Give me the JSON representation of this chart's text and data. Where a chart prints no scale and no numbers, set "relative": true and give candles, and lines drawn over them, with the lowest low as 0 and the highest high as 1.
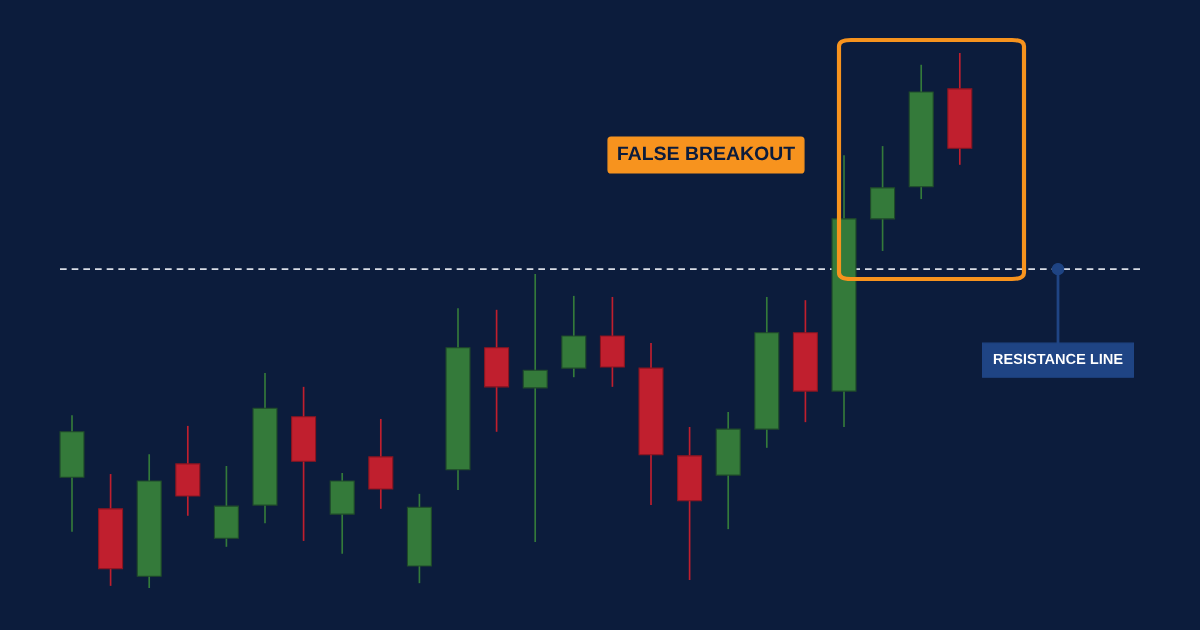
{
  "chart_data": {
    "type": "candlestick",
    "relative": true,
    "categories": [
      null,
      null,
      null,
      null,
      null,
      null,
      null,
      null,
      null,
      null,
      null,
      null,
      null,
      null,
      null,
      null,
      null,
      null,
      null,
      null,
      null,
      null,
      null,
      null
    ],
    "ohlc": [
      [
        0.207,
        0.323,
        0.105,
        0.292
      ],
      [
        0.148,
        0.213,
        0.004,
        0.036
      ],
      [
        0.022,
        0.25,
        0.0,
        0.2
      ],
      [
        0.232,
        0.303,
        0.135,
        0.172
      ],
      [
        0.093,
        0.228,
        0.077,
        0.153
      ],
      [
        0.155,
        0.402,
        0.121,
        0.336
      ],
      [
        0.32,
        0.376,
        0.088,
        0.237
      ],
      [
        0.138,
        0.215,
        0.064,
        0.2
      ],
      [
        0.245,
        0.316,
        0.148,
        0.185
      ],
      [
        0.041,
        0.176,
        0.009,
        0.151
      ],
      [
        0.221,
        0.523,
        0.183,
        0.449
      ],
      [
        0.449,
        0.52,
        0.292,
        0.376
      ],
      [
        0.374,
        0.587,
        0.086,
        0.407
      ],
      [
        0.411,
        0.546,
        0.394,
        0.471
      ],
      [
        0.471,
        0.544,
        0.376,
        0.413
      ],
      [
        0.411,
        0.458,
        0.155,
        0.249
      ],
      [
        0.247,
        0.301,
        0.015,
        0.163
      ],
      [
        0.211,
        0.329,
        0.11,
        0.297
      ],
      [
        0.297,
        0.544,
        0.262,
        0.477
      ],
      [
        0.477,
        0.538,
        0.31,
        0.368
      ],
      [
        0.368,
        0.809,
        0.301,
        0.69
      ],
      [
        0.69,
        0.826,
        0.63,
        0.748
      ],
      [
        0.75,
        0.978,
        0.727,
        0.927
      ],
      [
        0.933,
        1.0,
        0.791,
        0.822
      ]
    ],
    "colors": [
      "#347a3a",
      "#c01f2e",
      "#347a3a",
      "#c01f2e",
      "#347a3a",
      "#347a3a",
      "#c01f2e",
      "#347a3a",
      "#c01f2e",
      "#347a3a",
      "#347a3a",
      "#c01f2e",
      "#347a3a",
      "#347a3a",
      "#c01f2e",
      "#c01f2e",
      "#c01f2e",
      "#347a3a",
      "#347a3a",
      "#c01f2e",
      "#347a3a",
      "#347a3a",
      "#347a3a",
      "#c01f2e"
    ],
    "ref_lines": [
      {
        "axis": "y",
        "value": 0.596,
        "label": "RESISTANCE LINE",
        "color": "#d9dde6",
        "line_style": "dashed"
      }
    ],
    "annotations": [
      "FALSE BREAKOUT"
    ],
    "grid": false,
    "legend": false
  }
}
